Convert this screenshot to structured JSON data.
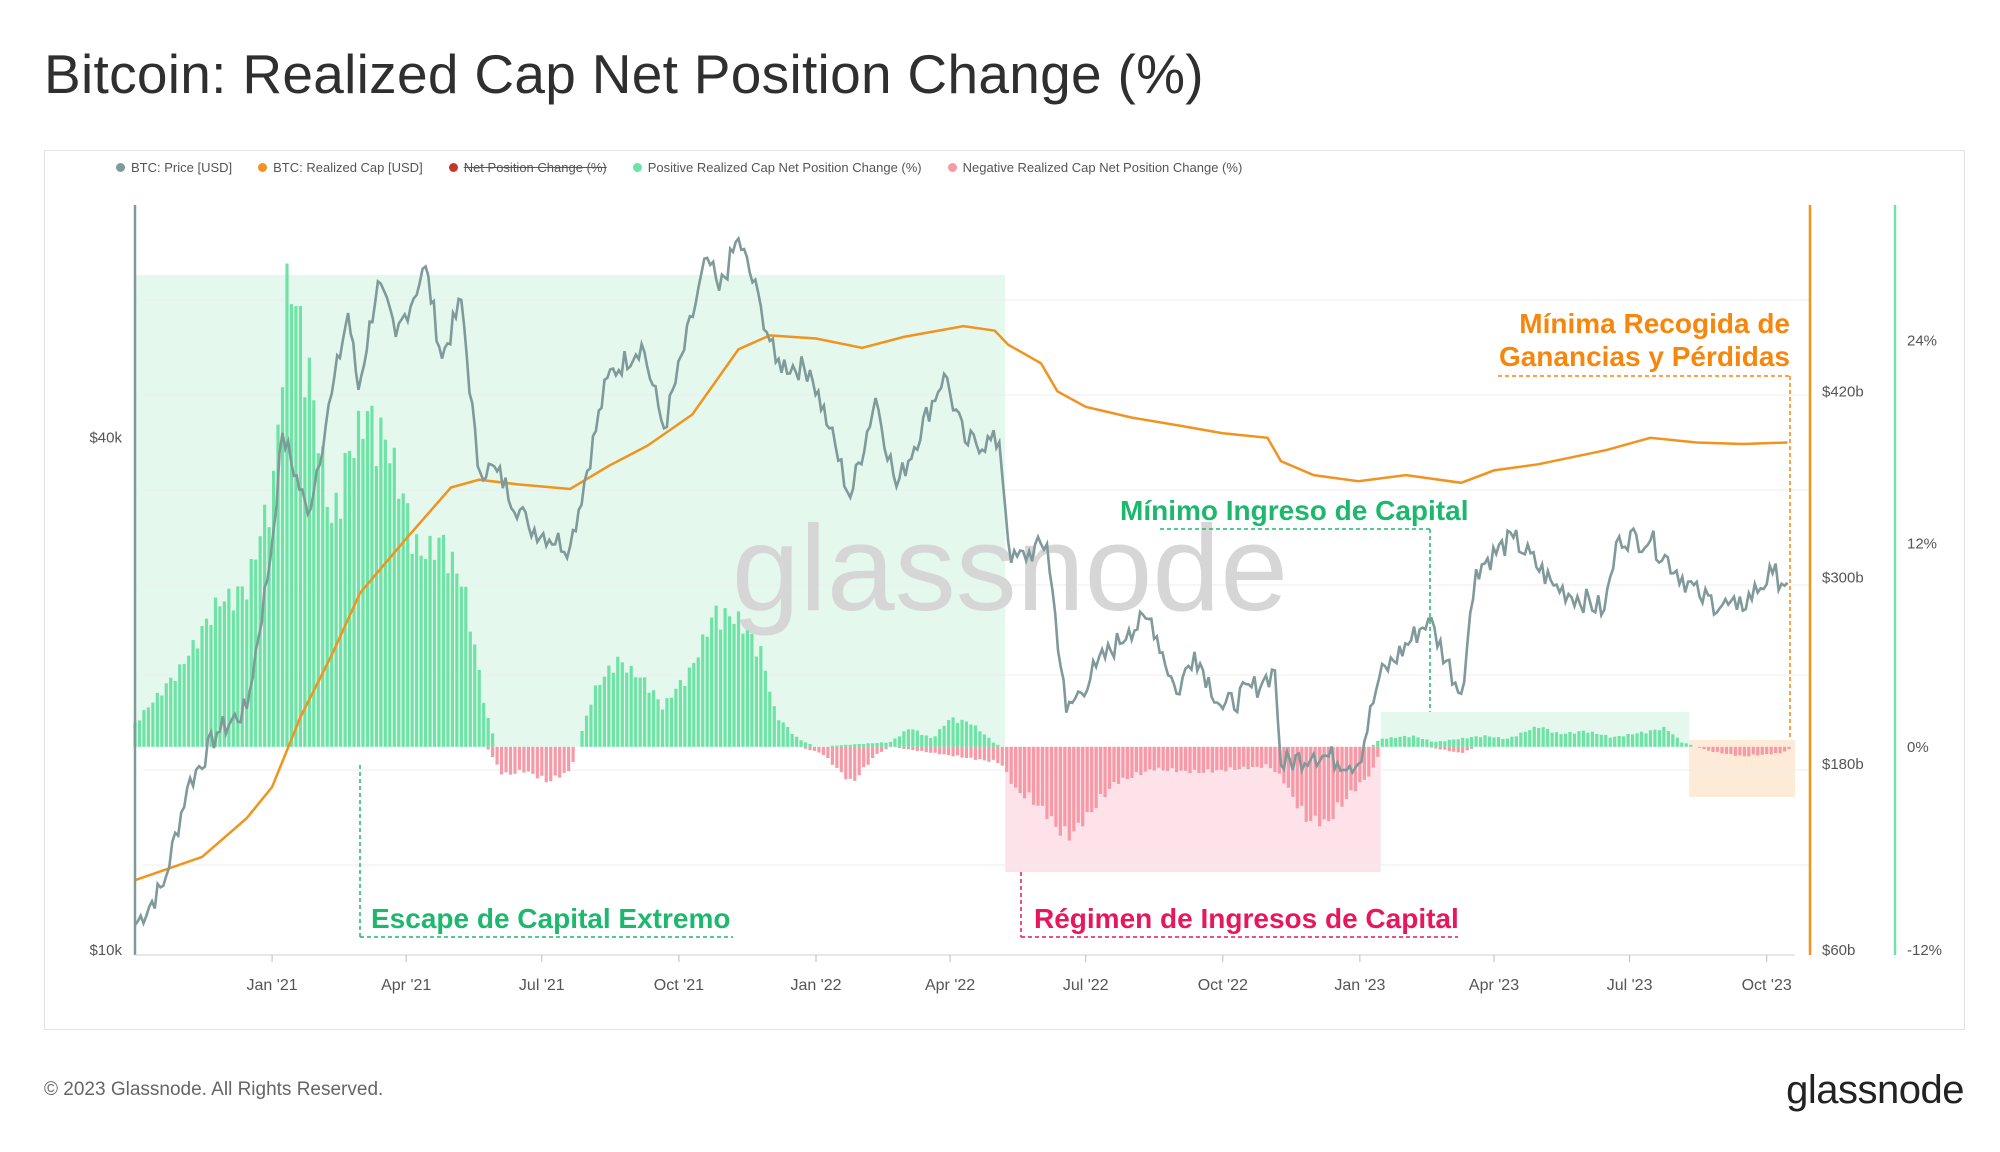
{
  "title": "Bitcoin: Realized Cap Net Position Change (%)",
  "footer": "© 2023 Glassnode. All Rights Reserved.",
  "brand": "glassnode",
  "watermark": "glassnode",
  "colors": {
    "price": "#7f9a99",
    "realized_cap": "#f0931f",
    "net_change": "#c0392b",
    "positive": "#6fe3a6",
    "negative": "#f59aa6",
    "positive_region": "#e4f8ee",
    "negative_region": "#fde2ea",
    "min_profit_region": "#fdebd8",
    "annot_green": "#1db86d",
    "annot_red": "#e8175d",
    "annot_orange": "#f7860d"
  },
  "legend": [
    {
      "label": "BTC: Price [USD]",
      "color": "#7f9a99",
      "disabled": false
    },
    {
      "label": "BTC: Realized Cap [USD]",
      "color": "#f0931f",
      "disabled": false
    },
    {
      "label": "Net Position Change (%)",
      "color": "#c0392b",
      "disabled": true
    },
    {
      "label": "Positive Realized Cap Net Position Change (%)",
      "color": "#6fe3a6",
      "disabled": false
    },
    {
      "label": "Negative Realized Cap Net Position Change (%)",
      "color": "#f59aa6",
      "disabled": false
    }
  ],
  "annotations": {
    "escape": "Escape de Capital Extremo",
    "regime": "Régimen de Ingresos de Capital",
    "minimo": "Mínimo Ingreso de Capital",
    "minima_line1": "Mínima Recogida de",
    "minima_line2": "Ganancias y Pérdidas"
  },
  "chart_data": {
    "type": "line",
    "x_ticks": [
      "Jan '21",
      "Apr '21",
      "Jul '21",
      "Oct '21",
      "Jan '22",
      "Apr '22",
      "Jul '22",
      "Oct '22",
      "Jan '23",
      "Apr '23",
      "Jul '23",
      "Oct '23"
    ],
    "x_range": [
      "2020-10-01",
      "2023-10-20"
    ],
    "axes": {
      "price": {
        "scale": "log",
        "range": [
          10000,
          75000
        ],
        "ticks": [
          {
            "v": 10000,
            "label": "$10k"
          },
          {
            "v": 40000,
            "label": "$40k"
          }
        ]
      },
      "realized_cap": {
        "scale": "linear",
        "range": [
          60,
          540
        ],
        "ticks": [
          {
            "v": 60,
            "label": "$60b"
          },
          {
            "v": 180,
            "label": "$180b"
          },
          {
            "v": 300,
            "label": "$300b"
          },
          {
            "v": 420,
            "label": "$420b"
          }
        ]
      },
      "net_change": {
        "scale": "linear",
        "range": [
          -12,
          32
        ],
        "ticks": [
          {
            "v": -12,
            "label": "-12%"
          },
          {
            "v": 0,
            "label": "0%"
          },
          {
            "v": 12,
            "label": "12%"
          },
          {
            "v": 24,
            "label": "24%"
          }
        ]
      }
    },
    "series": [
      {
        "name": "BTC: Price [USD]",
        "points": [
          [
            "2020-10-01",
            10700
          ],
          [
            "2020-10-20",
            11900
          ],
          [
            "2020-11-05",
            15500
          ],
          [
            "2020-11-25",
            18000
          ],
          [
            "2020-12-15",
            19200
          ],
          [
            "2020-12-31",
            29000
          ],
          [
            "2021-01-08",
            40500
          ],
          [
            "2021-01-25",
            32500
          ],
          [
            "2021-02-10",
            45000
          ],
          [
            "2021-02-21",
            56000
          ],
          [
            "2021-02-28",
            45500
          ],
          [
            "2021-03-13",
            61000
          ],
          [
            "2021-03-25",
            52500
          ],
          [
            "2021-04-14",
            63500
          ],
          [
            "2021-04-25",
            49500
          ],
          [
            "2021-05-08",
            58000
          ],
          [
            "2021-05-19",
            37000
          ],
          [
            "2021-06-01",
            36500
          ],
          [
            "2021-06-22",
            31500
          ],
          [
            "2021-07-20",
            29800
          ],
          [
            "2021-08-14",
            47000
          ],
          [
            "2021-09-06",
            51500
          ],
          [
            "2021-09-21",
            41000
          ],
          [
            "2021-10-20",
            65000
          ],
          [
            "2021-10-28",
            59500
          ],
          [
            "2021-11-10",
            68500
          ],
          [
            "2021-11-25",
            57000
          ],
          [
            "2021-12-05",
            49000
          ],
          [
            "2021-12-28",
            48000
          ],
          [
            "2022-01-10",
            41000
          ],
          [
            "2022-01-24",
            34000
          ],
          [
            "2022-02-10",
            44500
          ],
          [
            "2022-02-24",
            35000
          ],
          [
            "2022-03-28",
            47500
          ],
          [
            "2022-04-11",
            39500
          ],
          [
            "2022-05-04",
            39500
          ],
          [
            "2022-05-12",
            28500
          ],
          [
            "2022-06-05",
            30000
          ],
          [
            "2022-06-18",
            19000
          ],
          [
            "2022-07-08",
            21500
          ],
          [
            "2022-07-30",
            23800
          ],
          [
            "2022-08-14",
            24500
          ],
          [
            "2022-08-31",
            20000
          ],
          [
            "2022-09-12",
            22400
          ],
          [
            "2022-10-01",
            19200
          ],
          [
            "2022-10-28",
            20700
          ],
          [
            "2022-11-05",
            21300
          ],
          [
            "2022-11-09",
            16500
          ],
          [
            "2022-12-01",
            17000
          ],
          [
            "2022-12-31",
            16550
          ],
          [
            "2023-01-14",
            20900
          ],
          [
            "2023-02-16",
            24500
          ],
          [
            "2023-03-10",
            20000
          ],
          [
            "2023-03-20",
            28000
          ],
          [
            "2023-04-14",
            30500
          ],
          [
            "2023-05-11",
            26800
          ],
          [
            "2023-06-14",
            25100
          ],
          [
            "2023-06-24",
            30600
          ],
          [
            "2023-07-15",
            30300
          ],
          [
            "2023-08-17",
            26000
          ],
          [
            "2023-09-11",
            25100
          ],
          [
            "2023-10-05",
            27700
          ],
          [
            "2023-10-15",
            27000
          ]
        ]
      },
      {
        "name": "BTC: Realized Cap [USD]",
        "points": [
          [
            "2020-10-01",
            105
          ],
          [
            "2020-11-15",
            120
          ],
          [
            "2020-12-15",
            145
          ],
          [
            "2021-01-01",
            165
          ],
          [
            "2021-01-20",
            210
          ],
          [
            "2021-02-10",
            250
          ],
          [
            "2021-03-01",
            290
          ],
          [
            "2021-04-01",
            325
          ],
          [
            "2021-05-01",
            358
          ],
          [
            "2021-05-20",
            363
          ],
          [
            "2021-06-15",
            360
          ],
          [
            "2021-07-20",
            357
          ],
          [
            "2021-08-15",
            372
          ],
          [
            "2021-09-10",
            385
          ],
          [
            "2021-10-10",
            405
          ],
          [
            "2021-11-10",
            447
          ],
          [
            "2021-12-01",
            456
          ],
          [
            "2022-01-01",
            454
          ],
          [
            "2022-02-01",
            448
          ],
          [
            "2022-03-01",
            455
          ],
          [
            "2022-04-10",
            462
          ],
          [
            "2022-05-01",
            459
          ],
          [
            "2022-05-10",
            450
          ],
          [
            "2022-06-01",
            438
          ],
          [
            "2022-06-12",
            420
          ],
          [
            "2022-07-01",
            410
          ],
          [
            "2022-08-01",
            403
          ],
          [
            "2022-09-01",
            398
          ],
          [
            "2022-10-01",
            393
          ],
          [
            "2022-10-31",
            390
          ],
          [
            "2022-11-09",
            375
          ],
          [
            "2022-12-01",
            366
          ],
          [
            "2022-12-31",
            362
          ],
          [
            "2023-02-01",
            366
          ],
          [
            "2023-03-10",
            361
          ],
          [
            "2023-04-01",
            369
          ],
          [
            "2023-05-01",
            373
          ],
          [
            "2023-06-15",
            382
          ],
          [
            "2023-07-15",
            390
          ],
          [
            "2023-08-15",
            387
          ],
          [
            "2023-09-15",
            386
          ],
          [
            "2023-10-15",
            387
          ]
        ]
      },
      {
        "name": "Positive Realized Cap Net Position Change (%)",
        "points": [
          [
            "2020-10-01",
            1.5
          ],
          [
            "2020-11-01",
            5
          ],
          [
            "2020-11-25",
            9
          ],
          [
            "2020-12-15",
            10
          ],
          [
            "2021-01-03",
            17
          ],
          [
            "2021-01-12",
            30
          ],
          [
            "2021-01-25",
            24
          ],
          [
            "2021-02-10",
            14
          ],
          [
            "2021-02-20",
            18
          ],
          [
            "2021-03-05",
            21
          ],
          [
            "2021-03-20",
            19
          ],
          [
            "2021-04-10",
            12
          ],
          [
            "2021-04-25",
            13
          ],
          [
            "2021-05-10",
            10
          ],
          [
            "2021-05-25",
            2
          ],
          [
            "2021-06-01",
            0
          ],
          [
            "2021-07-25",
            0
          ],
          [
            "2021-08-05",
            3.5
          ],
          [
            "2021-08-20",
            5.5
          ],
          [
            "2021-09-10",
            4
          ],
          [
            "2021-09-20",
            2.5
          ],
          [
            "2021-10-10",
            5
          ],
          [
            "2021-10-25",
            8.5
          ],
          [
            "2021-11-10",
            8
          ],
          [
            "2021-11-25",
            6
          ],
          [
            "2021-12-05",
            2
          ],
          [
            "2021-12-20",
            0.5
          ],
          [
            "2022-01-01",
            0
          ],
          [
            "2022-02-20",
            0.3
          ],
          [
            "2022-03-05",
            1.2
          ],
          [
            "2022-03-20",
            0.5
          ],
          [
            "2022-04-01",
            1.8
          ],
          [
            "2022-04-15",
            1.5
          ],
          [
            "2022-04-30",
            0.3
          ],
          [
            "2022-05-05",
            0
          ],
          [
            "2023-01-08",
            0
          ],
          [
            "2023-01-15",
            0.5
          ],
          [
            "2023-02-05",
            0.7
          ],
          [
            "2023-02-20",
            0.3
          ],
          [
            "2023-03-25",
            0.7
          ],
          [
            "2023-04-10",
            0.5
          ],
          [
            "2023-05-01",
            1.3
          ],
          [
            "2023-05-15",
            0.8
          ],
          [
            "2023-06-01",
            1
          ],
          [
            "2023-06-20",
            0.6
          ],
          [
            "2023-07-15",
            1
          ],
          [
            "2023-07-25",
            1.2
          ],
          [
            "2023-08-05",
            0.3
          ],
          [
            "2023-08-15",
            0
          ],
          [
            "2023-10-20",
            0
          ]
        ]
      },
      {
        "name": "Negative Realized Cap Net Position Change (%)",
        "points": [
          [
            "2021-05-25",
            0
          ],
          [
            "2021-06-05",
            -1.8
          ],
          [
            "2021-06-20",
            -1.5
          ],
          [
            "2021-07-05",
            -2.2
          ],
          [
            "2021-07-20",
            -1.5
          ],
          [
            "2021-07-25",
            0
          ],
          [
            "2021-12-20",
            0
          ],
          [
            "2022-01-05",
            -0.4
          ],
          [
            "2022-01-25",
            -2.3
          ],
          [
            "2022-02-10",
            -0.5
          ],
          [
            "2022-02-20",
            0
          ],
          [
            "2022-05-05",
            -1
          ],
          [
            "2022-05-15",
            -2.7
          ],
          [
            "2022-06-01",
            -3.8
          ],
          [
            "2022-06-18",
            -5.8
          ],
          [
            "2022-07-01",
            -4.5
          ],
          [
            "2022-07-20",
            -2.3
          ],
          [
            "2022-08-15",
            -1.4
          ],
          [
            "2022-09-15",
            -1.6
          ],
          [
            "2022-10-10",
            -1.4
          ],
          [
            "2022-11-01",
            -1.2
          ],
          [
            "2022-11-10",
            -2
          ],
          [
            "2022-11-25",
            -4.5
          ],
          [
            "2022-12-10",
            -4.8
          ],
          [
            "2022-12-25",
            -3
          ],
          [
            "2023-01-10",
            -1.5
          ],
          [
            "2023-01-15",
            0
          ],
          [
            "2023-02-15",
            0
          ],
          [
            "2023-03-10",
            -0.4
          ],
          [
            "2023-03-20",
            0
          ],
          [
            "2023-08-15",
            0
          ],
          [
            "2023-08-25",
            -0.3
          ],
          [
            "2023-09-15",
            -0.6
          ],
          [
            "2023-10-10",
            -0.4
          ],
          [
            "2023-10-20",
            0
          ]
        ]
      }
    ],
    "shaded_regions": [
      {
        "from": "2020-10-01",
        "to": "2022-05-08",
        "label": "Escape de Capital Extremo",
        "color": "positive_region"
      },
      {
        "from": "2022-05-08",
        "to": "2023-01-15",
        "label": "Régimen de Ingresos de Capital",
        "color": "negative_region"
      },
      {
        "from": "2023-01-15",
        "to": "2023-08-10",
        "label": "Mínimo Ingreso de Capital",
        "color": "positive_region"
      },
      {
        "from": "2023-08-10",
        "to": "2023-10-20",
        "label": "Mínima Recogida de Ganancias y Pérdidas",
        "color": "min_profit_region"
      }
    ]
  }
}
